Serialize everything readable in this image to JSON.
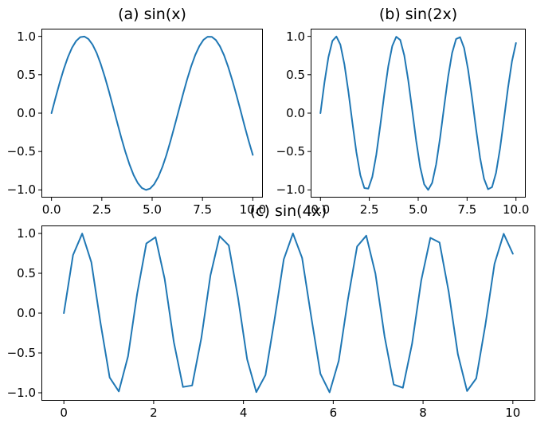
{
  "figure": {
    "background_color": "#ffffff",
    "axis_color": "#000000",
    "text_color": "#000000",
    "line_color": "#1f77b4"
  },
  "chart_data": [
    {
      "id": "a",
      "type": "line",
      "title": "(a) sin(x)",
      "xlabel": "",
      "ylabel": "",
      "grid": false,
      "legend": "none",
      "xlim": [
        -0.5,
        10.5
      ],
      "ylim": [
        -1.1,
        1.1
      ],
      "xticks": {
        "values": [
          0,
          2.5,
          5,
          7.5,
          10
        ],
        "labels": [
          "0.0",
          "2.5",
          "5.0",
          "7.5",
          "10.0"
        ]
      },
      "yticks": {
        "values": [
          1,
          0.5,
          0,
          -0.5,
          -1
        ],
        "labels": [
          "1.0",
          "0.5",
          "0.0",
          "−0.5",
          "−1.0"
        ]
      },
      "series": [
        {
          "name": "sin(x)",
          "color": "#1f77b4",
          "x": [
            0,
            0.204,
            0.408,
            0.612,
            0.816,
            1.02,
            1.224,
            1.429,
            1.633,
            1.837,
            2.041,
            2.245,
            2.449,
            2.653,
            2.857,
            3.061,
            3.265,
            3.469,
            3.673,
            3.878,
            4.082,
            4.286,
            4.49,
            4.694,
            4.898,
            5.102,
            5.306,
            5.51,
            5.714,
            5.918,
            6.122,
            6.327,
            6.531,
            6.735,
            6.939,
            7.143,
            7.347,
            7.551,
            7.755,
            7.959,
            8.163,
            8.367,
            8.571,
            8.776,
            8.98,
            9.184,
            9.388,
            9.592,
            9.796,
            10
          ],
          "y": [
            0,
            0.203,
            0.397,
            0.575,
            0.729,
            0.852,
            0.94,
            0.99,
            0.998,
            0.965,
            0.892,
            0.783,
            0.638,
            0.469,
            0.281,
            0.08,
            -0.123,
            -0.322,
            -0.507,
            -0.671,
            -0.808,
            -0.91,
            -0.975,
            -1,
            -0.983,
            -0.925,
            -0.83,
            -0.701,
            -0.541,
            -0.357,
            -0.16,
            0.043,
            0.245,
            0.437,
            0.61,
            0.758,
            0.874,
            0.955,
            0.995,
            0.994,
            0.953,
            0.871,
            0.754,
            0.603,
            0.429,
            0.239,
            0.037,
            -0.167,
            -0.363,
            -0.544
          ]
        }
      ]
    },
    {
      "id": "b",
      "type": "line",
      "title": "(b) sin(2x)",
      "xlabel": "",
      "ylabel": "",
      "grid": false,
      "legend": "none",
      "xlim": [
        -0.5,
        10.5
      ],
      "ylim": [
        -1.1,
        1.1
      ],
      "xticks": {
        "values": [
          0,
          2.5,
          5,
          7.5,
          10
        ],
        "labels": [
          "0.0",
          "2.5",
          "5.0",
          "7.5",
          "10.0"
        ]
      },
      "yticks": {
        "values": [
          1,
          0.5,
          0,
          -0.5,
          -1
        ],
        "labels": [
          "1.0",
          "0.5",
          "0.0",
          "−0.5",
          "−1.0"
        ]
      },
      "series": [
        {
          "name": "sin(2x)",
          "color": "#1f77b4",
          "x": [
            0,
            0.204,
            0.408,
            0.612,
            0.816,
            1.02,
            1.224,
            1.429,
            1.633,
            1.837,
            2.041,
            2.245,
            2.449,
            2.653,
            2.857,
            3.061,
            3.265,
            3.469,
            3.673,
            3.878,
            4.082,
            4.286,
            4.49,
            4.694,
            4.898,
            5.102,
            5.306,
            5.51,
            5.714,
            5.918,
            6.122,
            6.327,
            6.531,
            6.735,
            6.939,
            7.143,
            7.347,
            7.551,
            7.755,
            7.959,
            8.163,
            8.367,
            8.571,
            8.776,
            8.98,
            9.184,
            9.388,
            9.592,
            9.796,
            10
          ],
          "y": [
            0,
            0.397,
            0.729,
            0.941,
            0.998,
            0.892,
            0.638,
            0.281,
            -0.123,
            -0.507,
            -0.808,
            -0.975,
            -0.983,
            -0.83,
            -0.541,
            -0.16,
            0.245,
            0.61,
            0.874,
            0.995,
            0.953,
            0.754,
            0.429,
            0.037,
            -0.363,
            -0.703,
            -0.927,
            -1,
            -0.908,
            -0.666,
            -0.316,
            0.087,
            0.475,
            0.785,
            0.966,
            0.989,
            0.849,
            0.566,
            0.196,
            -0.209,
            -0.58,
            -0.855,
            -0.991,
            -0.964,
            -0.778,
            -0.463,
            -0.074,
            0.328,
            0.676,
            0.913
          ]
        }
      ]
    },
    {
      "id": "c",
      "type": "line",
      "title": "(c) sin(4x)",
      "xlabel": "",
      "ylabel": "",
      "grid": false,
      "legend": "none",
      "xlim": [
        -0.5,
        10.5
      ],
      "ylim": [
        -1.1,
        1.1
      ],
      "xticks": {
        "values": [
          0,
          2,
          4,
          6,
          8,
          10
        ],
        "labels": [
          "0",
          "2",
          "4",
          "6",
          "8",
          "10"
        ]
      },
      "yticks": {
        "values": [
          1,
          0.5,
          0,
          -0.5,
          -1
        ],
        "labels": [
          "1.0",
          "0.5",
          "0.0",
          "−0.5",
          "−1.0"
        ]
      },
      "series": [
        {
          "name": "sin(4x)",
          "color": "#1f77b4",
          "x": [
            0,
            0.204,
            0.408,
            0.612,
            0.816,
            1.02,
            1.224,
            1.429,
            1.633,
            1.837,
            2.041,
            2.245,
            2.449,
            2.653,
            2.857,
            3.061,
            3.265,
            3.469,
            3.673,
            3.878,
            4.082,
            4.286,
            4.49,
            4.694,
            4.898,
            5.102,
            5.306,
            5.51,
            5.714,
            5.918,
            6.122,
            6.327,
            6.531,
            6.735,
            6.939,
            7.143,
            7.347,
            7.551,
            7.755,
            7.959,
            8.163,
            8.367,
            8.571,
            8.776,
            8.98,
            9.184,
            9.388,
            9.592,
            9.796,
            10
          ],
          "y": [
            0,
            0.729,
            0.998,
            0.638,
            -0.123,
            -0.808,
            -0.983,
            -0.541,
            0.245,
            0.874,
            0.953,
            0.429,
            -0.363,
            -0.927,
            -0.908,
            -0.316,
            0.475,
            0.966,
            0.849,
            0.196,
            -0.58,
            -0.991,
            -0.778,
            -0.074,
            0.676,
            1,
            0.693,
            -0.05,
            -0.762,
            -0.994,
            -0.599,
            0.173,
            0.836,
            0.972,
            0.496,
            -0.293,
            -0.897,
            -0.937,
            -0.386,
            0.409,
            0.945,
            0.886,
            0.268,
            -0.518,
            -0.978,
            -0.82,
            -0.147,
            0.62,
            0.996,
            0.745
          ]
        }
      ]
    }
  ]
}
